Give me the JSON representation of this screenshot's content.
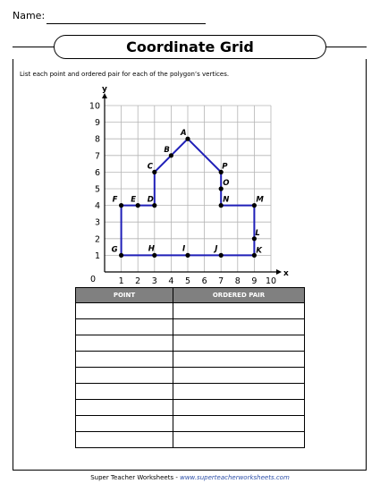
{
  "header": {
    "name_label": "Name:"
  },
  "title": "Coordinate Grid",
  "instructions": "List each point and ordered pair for each of the polygon’s vertices.",
  "graph": {
    "x_axis_label": "x",
    "y_axis_label": "y",
    "origin_label": "0",
    "x_ticks": [
      "1",
      "2",
      "3",
      "4",
      "5",
      "6",
      "7",
      "8",
      "9",
      "10"
    ],
    "y_ticks": [
      "1",
      "2",
      "3",
      "4",
      "5",
      "6",
      "7",
      "8",
      "9",
      "10"
    ],
    "points": [
      {
        "label": "A",
        "x": 5,
        "y": 8
      },
      {
        "label": "B",
        "x": 4,
        "y": 7
      },
      {
        "label": "C",
        "x": 3,
        "y": 6
      },
      {
        "label": "D",
        "x": 3,
        "y": 4
      },
      {
        "label": "E",
        "x": 2,
        "y": 4
      },
      {
        "label": "F",
        "x": 1,
        "y": 4
      },
      {
        "label": "G",
        "x": 1,
        "y": 1
      },
      {
        "label": "H",
        "x": 3,
        "y": 1
      },
      {
        "label": "I",
        "x": 5,
        "y": 1
      },
      {
        "label": "J",
        "x": 7,
        "y": 1
      },
      {
        "label": "K",
        "x": 9,
        "y": 1
      },
      {
        "label": "L",
        "x": 9,
        "y": 2
      },
      {
        "label": "M",
        "x": 9,
        "y": 4
      },
      {
        "label": "N",
        "x": 7,
        "y": 4
      },
      {
        "label": "O",
        "x": 7,
        "y": 5
      },
      {
        "label": "P",
        "x": 7,
        "y": 6
      }
    ],
    "line_color": "#1f1fb8"
  },
  "table": {
    "headers": [
      "POINT",
      "ORDERED PAIR"
    ],
    "empty_rows": 9
  },
  "footer": {
    "text": "Super Teacher Worksheets - ",
    "url": "www.superteacherworksheets.com"
  }
}
